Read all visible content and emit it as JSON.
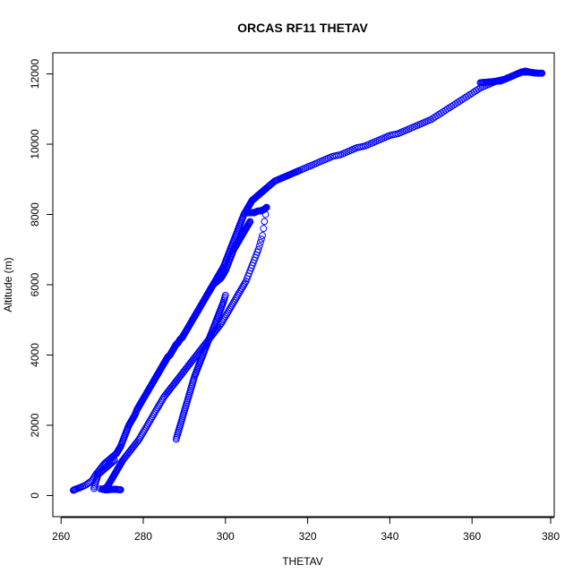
{
  "chart_data": {
    "type": "scatter",
    "title": "ORCAS RF11 THETAV",
    "xlabel": "THETAV",
    "ylabel": "Altitude (m)",
    "xlim": [
      258,
      380
    ],
    "ylim": [
      -600,
      12600
    ],
    "xticks": [
      260,
      280,
      300,
      320,
      340,
      360,
      380
    ],
    "yticks": [
      0,
      2000,
      4000,
      6000,
      8000,
      10000,
      12000
    ],
    "marker": "open-circle",
    "colors": {
      "points": "#0000ff",
      "axes": "#000000",
      "background": "#ffffff"
    },
    "series": [
      {
        "x": [
          263.0,
          263.5,
          264.5,
          266.0,
          267.5,
          268.5,
          269.5,
          270.5,
          271.5,
          272.5,
          273.5,
          274.0,
          274.5,
          275.0,
          275.5,
          276.0,
          276.5,
          277.0,
          277.5,
          278.0,
          278.5,
          279.0,
          279.5,
          280.0,
          280.5,
          281.0,
          281.5,
          282.0,
          282.5,
          283.0,
          283.5,
          284.0,
          284.5,
          285.0,
          285.5,
          286.0,
          286.5,
          287.0,
          287.5,
          288.0,
          288.5,
          289.0,
          289.5,
          290.0,
          290.5,
          291.0,
          291.5,
          292.0,
          292.5,
          293.0,
          293.5,
          294.0,
          294.5,
          295.0,
          295.5,
          296.0,
          296.5,
          297.0,
          297.5,
          298.0,
          298.5,
          299.0,
          299.5,
          300.0,
          300.5,
          301.0,
          301.5,
          302.0,
          302.5,
          303.0,
          303.5,
          304.0,
          304.5,
          305.0,
          305.5,
          306.0,
          306.5,
          307.0,
          307.5,
          308.0,
          308.5,
          309.0,
          309.5,
          310.0,
          311.0,
          312.0,
          313.0,
          314.0,
          315.0,
          316.0,
          317.0,
          318.0,
          320.0,
          322.0,
          324.0,
          326.0,
          328.0,
          330.0,
          332.0,
          334.0,
          336.0,
          338.0,
          340.0,
          342.0,
          344.0,
          346.0,
          348.0,
          350.0,
          352.0,
          354.0,
          356.0,
          358.0,
          360.0,
          362.0,
          364.0,
          366.0,
          368.0,
          370.0,
          372.0,
          374.0,
          376.0,
          377.0
        ],
        "y": [
          150,
          180,
          220,
          300,
          420,
          600,
          750,
          900,
          1000,
          1100,
          1200,
          1300,
          1400,
          1550,
          1700,
          1850,
          2000,
          2100,
          2200,
          2300,
          2450,
          2550,
          2650,
          2750,
          2850,
          2950,
          3050,
          3150,
          3250,
          3350,
          3450,
          3550,
          3650,
          3750,
          3850,
          3950,
          4000,
          4100,
          4200,
          4300,
          4350,
          4450,
          4500,
          4600,
          4700,
          4800,
          4900,
          5000,
          5100,
          5200,
          5300,
          5400,
          5500,
          5600,
          5700,
          5800,
          5900,
          6000,
          6100,
          6200,
          6300,
          6400,
          6500,
          6650,
          6800,
          6950,
          7100,
          7250,
          7400,
          7550,
          7700,
          7850,
          8000,
          8100,
          8200,
          8300,
          8400,
          8450,
          8500,
          8550,
          8600,
          8650,
          8700,
          8750,
          8850,
          8950,
          9000,
          9050,
          9100,
          9150,
          9200,
          9250,
          9350,
          9450,
          9550,
          9650,
          9700,
          9800,
          9900,
          9950,
          10050,
          10150,
          10250,
          10300,
          10400,
          10500,
          10600,
          10700,
          10850,
          11000,
          11150,
          11300,
          11450,
          11600,
          11700,
          11800,
          11850,
          11950,
          12050,
          12050,
          12020,
          12020
        ]
      },
      {
        "x": [
          270.5,
          271.0,
          271.5,
          272.0,
          272.5,
          273.0,
          273.5,
          274.0,
          274.5,
          275.0,
          276.0,
          277.0,
          278.0,
          279.0,
          280.0,
          281.0,
          282.0,
          283.0,
          284.0,
          285.0,
          286.0,
          287.0,
          288.0,
          289.0,
          290.0,
          291.0,
          292.0,
          293.0,
          294.0,
          295.0,
          296.0,
          297.0,
          298.0,
          299.0,
          300.0,
          301.0,
          302.0,
          303.0,
          304.0,
          305.0,
          306.0,
          307.0,
          308.0,
          309.0,
          310.0
        ],
        "y": [
          200,
          220,
          300,
          400,
          500,
          600,
          700,
          800,
          900,
          1000,
          1150,
          1300,
          1450,
          1600,
          1800,
          2000,
          2200,
          2400,
          2600,
          2800,
          2950,
          3100,
          3250,
          3400,
          3550,
          3700,
          3850,
          4000,
          4150,
          4300,
          4450,
          4600,
          4750,
          4900,
          5100,
          5300,
          5500,
          5700,
          5900,
          6100,
          6400,
          6700,
          7000,
          7400,
          8200
        ]
      },
      {
        "x": [
          288.0,
          288.5,
          289.0,
          289.5,
          290.0,
          290.5,
          291.0,
          291.5,
          292.0,
          292.5,
          293.0,
          293.5,
          294.0,
          294.5,
          295.0,
          295.5,
          296.0,
          296.5,
          297.0,
          297.5,
          298.0,
          298.5,
          299.0,
          299.5,
          300.0
        ],
        "y": [
          1600,
          1800,
          2000,
          2200,
          2400,
          2600,
          2800,
          3000,
          3200,
          3400,
          3550,
          3700,
          3850,
          4000,
          4150,
          4300,
          4450,
          4600,
          4750,
          4900,
          5050,
          5200,
          5350,
          5500,
          5700
        ]
      },
      {
        "x": [
          270.0,
          270.5,
          271.0,
          272.0,
          273.0,
          274.0,
          274.5,
          268.0,
          268.5,
          269.0,
          270.0,
          271.0,
          272.0,
          273.0
        ],
        "y": [
          180,
          170,
          160,
          170,
          180,
          170,
          165,
          200,
          400,
          600,
          700,
          800,
          900,
          1000
        ]
      },
      {
        "x": [
          296.0,
          296.5,
          297.0,
          297.5,
          298.0,
          298.5,
          299.0,
          299.5,
          300.0,
          300.5,
          301.0,
          301.5,
          302.0,
          302.5,
          303.0,
          303.5,
          304.0,
          304.5,
          305.0,
          305.5,
          306.0
        ],
        "y": [
          5800,
          5900,
          6000,
          6050,
          6100,
          6150,
          6200,
          6300,
          6400,
          6550,
          6700,
          6850,
          7000,
          7100,
          7200,
          7300,
          7400,
          7500,
          7600,
          7700,
          7800
        ]
      },
      {
        "x": [
          305.5,
          306.0,
          306.5,
          307.0,
          307.5,
          308.0,
          308.5,
          309.0,
          309.5,
          310.0
        ],
        "y": [
          8050,
          8050,
          8050,
          8050,
          8080,
          8100,
          8100,
          8120,
          8150,
          8200
        ]
      },
      {
        "x": [
          362.0,
          363.0,
          364.0,
          365.0,
          366.0,
          367.0,
          368.0,
          369.0,
          370.0,
          371.0,
          372.0,
          373.0,
          374.0,
          375.0,
          376.0,
          377.0
        ],
        "y": [
          11750,
          11760,
          11770,
          11780,
          11790,
          11800,
          11850,
          11900,
          11950,
          12000,
          12050,
          12080,
          12050,
          12030,
          12020,
          12020
        ]
      }
    ]
  }
}
